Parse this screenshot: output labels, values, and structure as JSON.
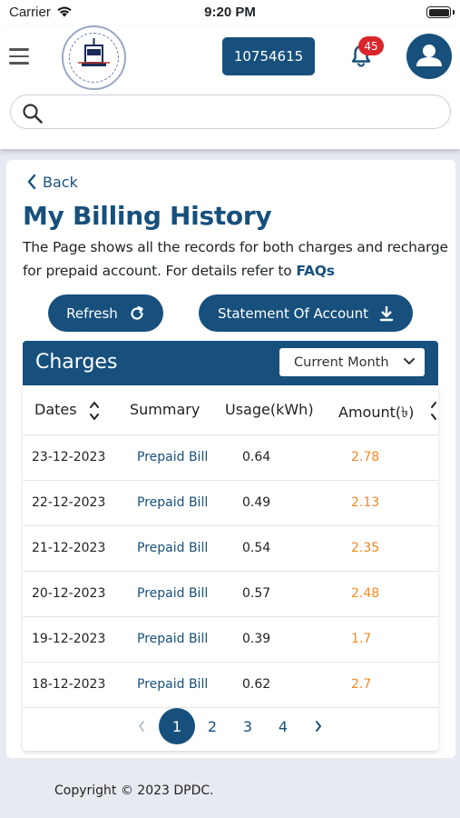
{
  "status_bar": {
    "carrier": "Carrier",
    "time": "9:20 PM"
  },
  "header": {
    "account_number": "10754615",
    "notification_count": "45",
    "search": {
      "value": "",
      "placeholder": ""
    }
  },
  "page": {
    "back_label": "Back",
    "title": "My Billing History",
    "description": "The Page shows all the records for both charges and recharge for prepaid account. For details refer to ",
    "faq_link": "FAQs",
    "refresh_label": "Refresh",
    "statement_label": "Statement Of Account"
  },
  "charges": {
    "title": "Charges",
    "period_selected": "Current Month",
    "columns": [
      "Dates",
      "Summary",
      "Usage(kWh)",
      "Amount(৳)"
    ],
    "rows": [
      {
        "date": "23-12-2023",
        "summary": "Prepaid Bill",
        "usage": "0.64",
        "amount": "2.78"
      },
      {
        "date": "22-12-2023",
        "summary": "Prepaid Bill",
        "usage": "0.49",
        "amount": "2.13"
      },
      {
        "date": "21-12-2023",
        "summary": "Prepaid Bill",
        "usage": "0.54",
        "amount": "2.35"
      },
      {
        "date": "20-12-2023",
        "summary": "Prepaid Bill",
        "usage": "0.57",
        "amount": "2.48"
      },
      {
        "date": "19-12-2023",
        "summary": "Prepaid Bill",
        "usage": "0.39",
        "amount": "1.7"
      },
      {
        "date": "18-12-2023",
        "summary": "Prepaid Bill",
        "usage": "0.62",
        "amount": "2.7"
      }
    ],
    "pagination": {
      "pages": [
        "1",
        "2",
        "3",
        "4"
      ],
      "current": "1"
    }
  },
  "footer": {
    "copyright": "Copyright © 2023 DPDC."
  },
  "colors": {
    "primary": "#17507c",
    "amount": "#f08a24",
    "badge": "#d9262c",
    "background": "#e7ebf1"
  }
}
